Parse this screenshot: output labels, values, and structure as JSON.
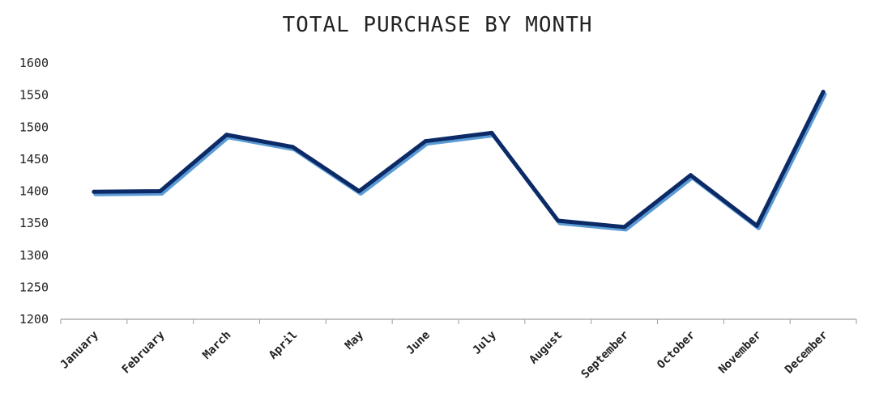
{
  "chart_data": {
    "type": "line",
    "title": "TOTAL PURCHASE BY MONTH",
    "xlabel": "",
    "ylabel": "",
    "categories": [
      "January",
      "February",
      "March",
      "April",
      "May",
      "June",
      "July",
      "August",
      "September",
      "October",
      "November",
      "December"
    ],
    "series": [
      {
        "values": [
          1399,
          1400,
          1488,
          1469,
          1400,
          1478,
          1491,
          1354,
          1344,
          1425,
          1346,
          1555
        ]
      }
    ],
    "ylim": [
      1200,
      1600
    ],
    "yticks": [
      "1200",
      "1250",
      "1300",
      "1350",
      "1400",
      "1450",
      "1500",
      "1550",
      "1600"
    ],
    "grid": false,
    "drop_lines": true,
    "colors": {
      "line": "#0b2a66",
      "line_shadow": "#5b9bd5",
      "drop_line": "#a9c8e4",
      "axis": "#9e9e9e"
    }
  }
}
